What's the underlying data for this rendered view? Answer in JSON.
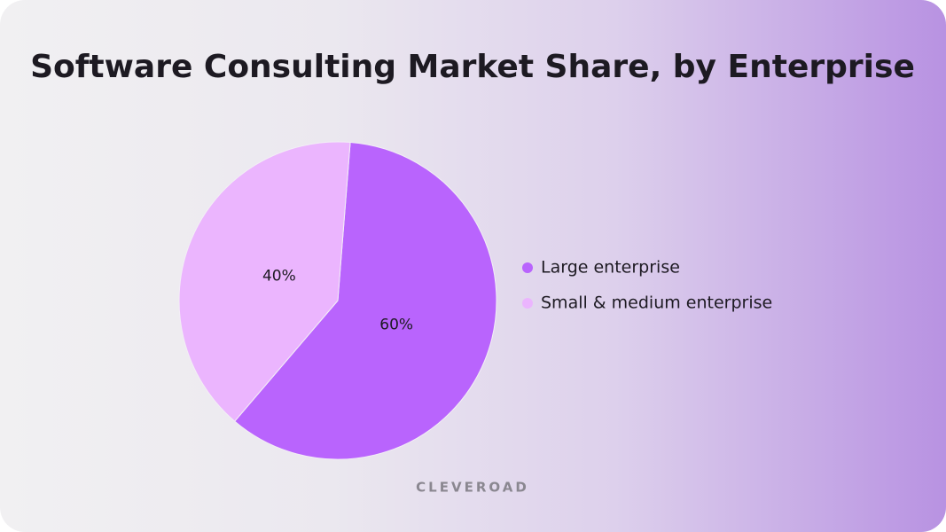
{
  "chart_data": {
    "type": "pie",
    "title": "Software Consulting Market Share, by Enterprise",
    "categories": [
      "Large enterprise",
      "Small & medium enterprise"
    ],
    "values": [
      60,
      40
    ],
    "value_labels": [
      "60%",
      "40%"
    ],
    "colors": [
      "#b964fd",
      "#ebb5fe"
    ],
    "watermark": "CLEVEROAD"
  }
}
